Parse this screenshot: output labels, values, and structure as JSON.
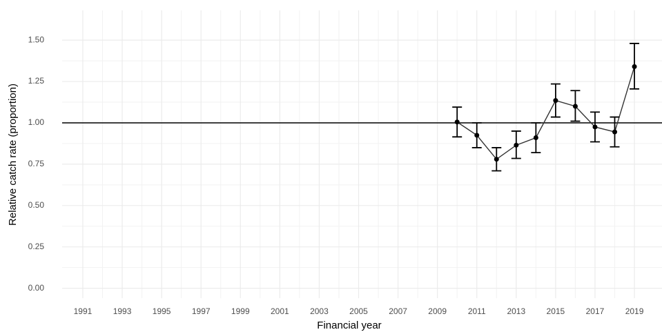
{
  "chart_data": {
    "type": "errorline",
    "x_label": "Financial year",
    "y_label": "Relative catch rate (proportion)",
    "x": [
      2010,
      2011,
      2012,
      2013,
      2014,
      2015,
      2016,
      2017,
      2018,
      2019
    ],
    "values": [
      1.005,
      0.925,
      0.78,
      0.865,
      0.91,
      1.135,
      1.1,
      0.975,
      0.945,
      1.34
    ],
    "lower": [
      0.915,
      0.85,
      0.71,
      0.785,
      0.82,
      1.035,
      1.01,
      0.885,
      0.855,
      1.205
    ],
    "upper": [
      1.095,
      1.0,
      0.85,
      0.95,
      1.0,
      1.235,
      1.195,
      1.065,
      1.035,
      1.48
    ],
    "color": "#000000",
    "hline": 1,
    "xlim": [
      1989.95,
      2020.4
    ],
    "ylim": [
      -0.06,
      1.68
    ],
    "xticks": [
      1991,
      1993,
      1995,
      1997,
      1999,
      2001,
      2003,
      2005,
      2007,
      2009,
      2011,
      2013,
      2015,
      2017,
      2019
    ],
    "yticks": [
      {
        "value": 0,
        "label": "0.00"
      },
      {
        "value": 0.25,
        "label": "0.25"
      },
      {
        "value": 0.5,
        "label": "0.50"
      },
      {
        "value": 0.75,
        "label": "0.75"
      },
      {
        "value": 1,
        "label": "1.00"
      },
      {
        "value": 1.25,
        "label": "1.25"
      },
      {
        "value": 1.5,
        "label": "1.50"
      }
    ],
    "grid": true
  }
}
